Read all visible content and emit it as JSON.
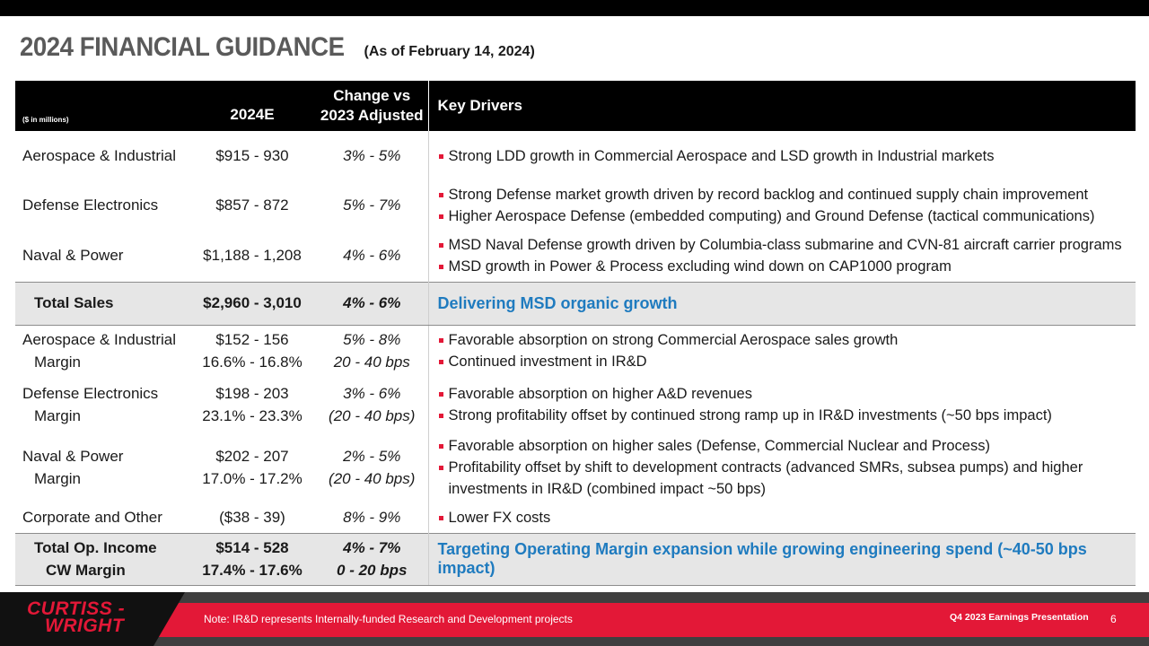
{
  "title": "2024 FINANCIAL GUIDANCE",
  "subtitle": "(As of February 14, 2024)",
  "table": {
    "header": {
      "units": "($ in millions)",
      "col1": "2024E",
      "col2_line1": "Change vs",
      "col2_line2": "2023 Adjusted",
      "col3": "Key Drivers"
    },
    "sales_rows": [
      {
        "label": "Aerospace & Industrial",
        "value": "$915 - 930",
        "change": "3% - 5%",
        "drivers": [
          "Strong LDD growth in Commercial Aerospace and LSD growth in Industrial markets"
        ]
      },
      {
        "label": "Defense Electronics",
        "value": "$857 - 872",
        "change": "5% - 7%",
        "drivers": [
          "Strong Defense market growth driven by record backlog and continued supply chain improvement",
          "Higher Aerospace Defense (embedded computing) and Ground Defense (tactical communications)"
        ]
      },
      {
        "label": "Naval & Power",
        "value": "$1,188 - 1,208",
        "change": "4% - 6%",
        "drivers": [
          "MSD Naval Defense growth driven by Columbia-class submarine and CVN-81 aircraft carrier programs",
          "MSD growth in Power & Process excluding wind down on CAP1000 program"
        ]
      }
    ],
    "total_sales": {
      "label": "Total Sales",
      "value": "$2,960 - 3,010",
      "change": "4% - 6%",
      "driver": "Delivering MSD organic growth"
    },
    "op_rows": [
      {
        "label": "Aerospace & Industrial",
        "sublabel": "Margin",
        "value": "$152 - 156",
        "margin": "16.6% - 16.8%",
        "change": "5% - 8%",
        "margin_change": "20 - 40 bps",
        "drivers": [
          "Favorable absorption on strong Commercial Aerospace sales growth",
          "Continued investment in IR&D"
        ]
      },
      {
        "label": "Defense Electronics",
        "sublabel": "Margin",
        "value": "$198 - 203",
        "margin": "23.1% - 23.3%",
        "change": "3% - 6%",
        "margin_change": "(20 - 40 bps)",
        "drivers": [
          "Favorable absorption on higher A&D revenues",
          "Strong profitability offset by continued strong ramp up in IR&D investments (~50 bps impact)"
        ]
      },
      {
        "label": "Naval & Power",
        "sublabel": "Margin",
        "value": "$202 - 207",
        "margin": "17.0% - 17.2%",
        "change": "2% - 5%",
        "margin_change": "(20 - 40 bps)",
        "drivers": [
          "Favorable absorption on higher sales (Defense, Commercial Nuclear and Process)",
          "Profitability offset by shift to development contracts (advanced SMRs, subsea pumps) and higher",
          "investments in IR&D (combined impact ~50 bps)"
        ]
      }
    ],
    "corporate": {
      "label": "Corporate and Other",
      "value": "($38 - 39)",
      "change": "8% - 9%",
      "driver": "Lower FX costs"
    },
    "total_op": {
      "label": "Total Op. Income",
      "sublabel": "CW Margin",
      "value": "$514 - 528",
      "margin": "17.4% - 17.6%",
      "change": "4% - 7%",
      "margin_change": "0 - 20 bps",
      "driver": "Targeting Operating Margin expansion while growing engineering spend (~40-50 bps impact)"
    }
  },
  "footer": {
    "logo_line1": "CURTISS -",
    "logo_line2": "WRIGHT",
    "note": "Note: IR&D represents Internally-funded Research and Development projects",
    "presentation": "Q4 2023 Earnings Presentation",
    "page": "6"
  },
  "colors": {
    "accent_red": "#e31837",
    "highlight_blue": "#1f7bbf",
    "total_row_bg": "#e6e6e6"
  }
}
